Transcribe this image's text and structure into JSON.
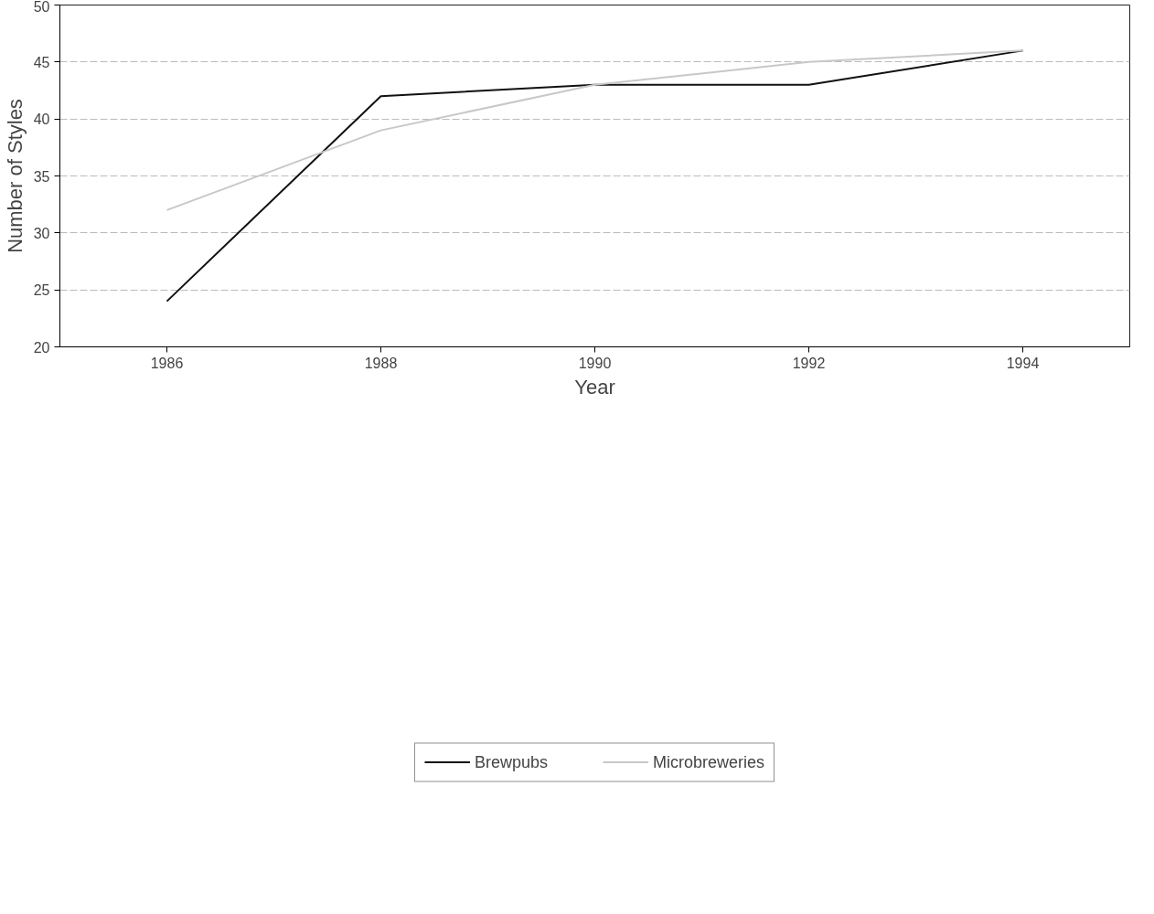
{
  "chart_data": {
    "type": "line",
    "xlabel": "Year",
    "ylabel": "Number of Styles",
    "x": [
      1986,
      1988,
      1990,
      1992,
      1994
    ],
    "series": [
      {
        "name": "Brewpubs",
        "color": "#111111",
        "values": [
          24,
          42,
          43,
          43,
          46
        ]
      },
      {
        "name": "Microbreweries",
        "color": "#c8c8c8",
        "values": [
          32,
          39,
          43,
          45,
          46
        ]
      }
    ],
    "xlim": [
      1985,
      1995
    ],
    "xticks": [
      1986,
      1988,
      1990,
      1992,
      1994
    ],
    "ylim": [
      20,
      50
    ],
    "yticks": [
      20,
      25,
      30,
      35,
      40,
      45,
      50
    ],
    "grid": "y",
    "legend": "bottom",
    "marker": "none",
    "line_style": "solid"
  }
}
